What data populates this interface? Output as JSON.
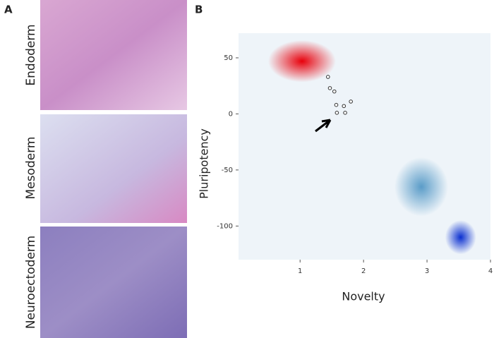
{
  "panel_labels": [
    "A",
    "B"
  ],
  "images": [
    {
      "label": "Endoderm"
    },
    {
      "label": "Mesoderm"
    },
    {
      "label": "Neuroectoderm"
    }
  ],
  "chart_data": {
    "type": "scatter",
    "x_label": "Novelty",
    "y_label": "Pluripotency",
    "xlim": [
      0.03,
      4
    ],
    "ylim": [
      -130,
      72
    ],
    "xticks": [
      1,
      2,
      3,
      4
    ],
    "yticks": [
      50,
      0,
      -50,
      -100
    ],
    "point_color": "#333333",
    "x": [
      1.44,
      1.47,
      1.54,
      1.57,
      1.69,
      1.8,
      1.58,
      1.71
    ],
    "y": [
      33,
      23,
      20,
      8,
      7,
      11,
      1,
      1
    ],
    "density": [
      {
        "color": "#e8000b",
        "x": 1.03,
        "y": 47
      },
      {
        "color": "#5a9cc8",
        "x": 2.91,
        "y": -65
      },
      {
        "color": "#0a2fd0",
        "x": 3.53,
        "y": -110
      }
    ]
  }
}
